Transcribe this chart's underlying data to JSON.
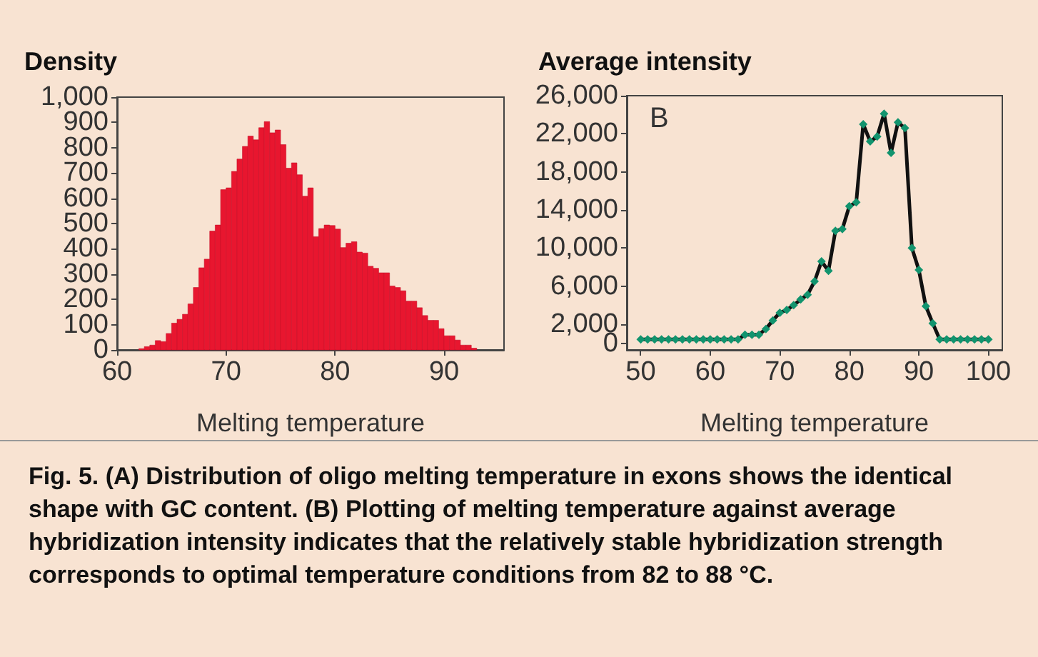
{
  "chart_data": [
    {
      "type": "histogram",
      "ylabel": "Density",
      "xlabel": "Melting temperature",
      "color": "#e8162f",
      "bins": [
        62,
        62.5,
        63,
        63.5,
        64,
        64.5,
        65,
        65.5,
        66,
        66.5,
        67,
        67.5,
        68,
        68.5,
        69,
        69.5,
        70,
        70.5,
        71,
        71.5,
        72,
        72.5,
        73,
        73.5,
        74,
        74.5,
        75,
        75.5,
        76,
        76.5,
        77,
        77.5,
        78,
        78.5,
        79,
        79.5,
        80,
        80.5,
        81,
        81.5,
        82,
        82.5,
        83,
        83.5,
        84,
        84.5,
        85,
        85.5,
        86,
        86.5,
        87,
        87.5,
        88,
        88.5,
        89,
        89.5,
        90,
        90.5,
        91,
        91.5,
        92,
        92.5,
        93
      ],
      "values": [
        5,
        13,
        19,
        37,
        33,
        65,
        106,
        121,
        141,
        182,
        247,
        325,
        359,
        470,
        494,
        634,
        641,
        706,
        755,
        805,
        846,
        831,
        879,
        903,
        859,
        870,
        812,
        719,
        740,
        693,
        608,
        641,
        448,
        480,
        494,
        492,
        478,
        405,
        422,
        428,
        387,
        383,
        331,
        323,
        305,
        305,
        253,
        247,
        234,
        193,
        193,
        167,
        136,
        117,
        117,
        84,
        56,
        56,
        39,
        19,
        19,
        7
      ],
      "xlim": [
        60,
        95.5
      ],
      "ylim": [
        0,
        1000
      ],
      "xticks": [
        60,
        70,
        80,
        90
      ],
      "yticks": [
        0,
        100,
        200,
        300,
        400,
        500,
        600,
        700,
        800,
        900,
        {
          "value": 1000,
          "label": "1,000"
        }
      ],
      "annotations": [
        "Fig. 5. (A) Distribution of oligo melting temperature in exons shows the identical shape with GC content. (B) Plotting of melting temperature against average hybridization intensity indicates that the relatively stable hybridization strength corresponds to optimal temperature conditions from 82 to 88 °C."
      ]
    },
    {
      "type": "line",
      "ylabel": "Average intensity",
      "xlabel": "Melting temperature",
      "marker": "diamond",
      "line_style": "solid",
      "x": [
        50,
        51,
        52,
        53,
        54,
        55,
        56,
        57,
        58,
        59,
        60,
        61,
        62,
        63,
        64,
        65,
        66,
        67,
        68,
        69,
        70,
        71,
        72,
        73,
        74,
        75,
        76,
        77,
        78,
        79,
        80,
        81,
        82,
        83,
        84,
        85,
        86,
        87,
        88,
        89,
        90,
        91,
        92,
        93,
        94,
        95,
        96,
        97,
        98,
        99,
        100
      ],
      "series": [
        {
          "color": "#12946e",
          "values": [
            400,
            400,
            400,
            400,
            400,
            400,
            400,
            400,
            400,
            400,
            400,
            400,
            400,
            400,
            400,
            900,
            900,
            900,
            1500,
            2400,
            3200,
            3500,
            4000,
            4600,
            5100,
            6500,
            8600,
            7600,
            11800,
            12000,
            14400,
            14800,
            23000,
            21200,
            21700,
            24100,
            20000,
            23200,
            22600,
            10000,
            7700,
            3900,
            2100,
            400,
            400,
            400,
            400,
            400,
            400,
            400,
            400
          ]
        }
      ],
      "xlim": [
        48,
        102
      ],
      "ylim": [
        -700,
        26000
      ],
      "xticks": [
        50,
        60,
        70,
        80,
        90,
        100
      ],
      "yticks": [
        0,
        {
          "value": 2000,
          "label": "2,000"
        },
        {
          "value": 6000,
          "label": "6,000"
        },
        {
          "value": 10000,
          "label": "10,000"
        },
        {
          "value": 14000,
          "label": "14,000"
        },
        {
          "value": 18000,
          "label": "18,000"
        },
        {
          "value": 22000,
          "label": "22,000"
        },
        {
          "value": 26000,
          "label": "26,000"
        }
      ],
      "annotations": [
        "B"
      ]
    }
  ]
}
